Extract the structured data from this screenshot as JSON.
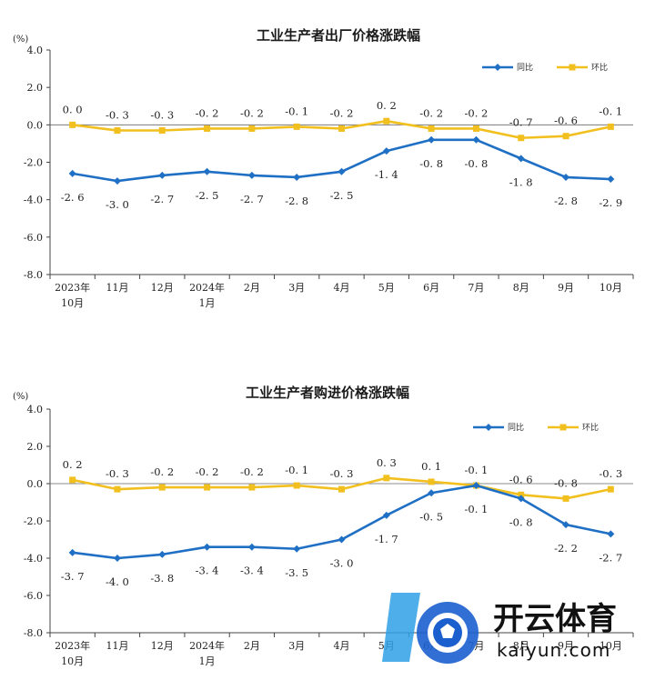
{
  "chart_data": [
    {
      "type": "line",
      "title": "工业生产者出厂价格涨跌幅",
      "unit_label": "(%)",
      "categories": [
        [
          "2023年",
          "10月"
        ],
        [
          "11月"
        ],
        [
          "12月"
        ],
        [
          "2024年",
          "1月"
        ],
        [
          "2月"
        ],
        [
          "3月"
        ],
        [
          "4月"
        ],
        [
          "5月"
        ],
        [
          "6月"
        ],
        [
          "7月"
        ],
        [
          "8月"
        ],
        [
          "9月"
        ],
        [
          "10月"
        ]
      ],
      "ylim": [
        -8.0,
        4.0
      ],
      "yticks": [
        "4.0",
        "2.0",
        "0.0",
        "-2.0",
        "-4.0",
        "-6.0",
        "-8.0"
      ],
      "legend_position": "top-right",
      "series": [
        {
          "name": "同比",
          "color": "#1f6fc4",
          "marker": "diamond",
          "values": [
            -2.6,
            -3.0,
            -2.7,
            -2.5,
            -2.7,
            -2.8,
            -2.5,
            -1.4,
            -0.8,
            -0.8,
            -1.8,
            -2.8,
            -2.9
          ],
          "labels": [
            "-2.6",
            "-3.0",
            "-2.7",
            "-2.5",
            "-2.7",
            "-2.8",
            "-2.5",
            "-1.4",
            "-0.8",
            "-0.8",
            "-1.8",
            "-2.8",
            "-2.9"
          ]
        },
        {
          "name": "环比",
          "color": "#f2c01e",
          "marker": "square",
          "values": [
            0.0,
            -0.3,
            -0.3,
            -0.2,
            -0.2,
            -0.1,
            -0.2,
            0.2,
            -0.2,
            -0.2,
            -0.7,
            -0.6,
            -0.1
          ],
          "labels": [
            "0.0",
            "-0.3",
            "-0.3",
            "-0.2",
            "-0.2",
            "-0.1",
            "-0.2",
            "0.2",
            "-0.2",
            "-0.2",
            "-0.7",
            "-0.6",
            "-0.1"
          ]
        }
      ]
    },
    {
      "type": "line",
      "title": "工业生产者购进价格涨跌幅",
      "unit_label": "(%)",
      "categories": [
        [
          "2023年",
          "10月"
        ],
        [
          "11月"
        ],
        [
          "12月"
        ],
        [
          "2024年",
          "1月"
        ],
        [
          "2月"
        ],
        [
          "3月"
        ],
        [
          "4月"
        ],
        [
          "5月"
        ],
        [
          "6月"
        ],
        [
          "7月"
        ],
        [
          "8月"
        ],
        [
          "9月"
        ],
        [
          "10月"
        ]
      ],
      "ylim": [
        -8.0,
        4.0
      ],
      "yticks": [
        "4.0",
        "2.0",
        "0.0",
        "-2.0",
        "-4.0",
        "-6.0",
        "-8.0"
      ],
      "legend_position": "top-right",
      "series": [
        {
          "name": "同比",
          "color": "#1f6fc4",
          "marker": "diamond",
          "values": [
            -3.7,
            -4.0,
            -3.8,
            -3.4,
            -3.4,
            -3.5,
            -3.0,
            -1.7,
            -0.5,
            -0.1,
            -0.8,
            -2.2,
            -2.7
          ],
          "labels": [
            "-3.7",
            "-4.0",
            "-3.8",
            "-3.4",
            "-3.4",
            "-3.5",
            "-3.0",
            "-1.7",
            "-0.5",
            "-0.1",
            "-0.8",
            "-2.2",
            "-2.7"
          ]
        },
        {
          "name": "环比",
          "color": "#f2c01e",
          "marker": "square",
          "values": [
            0.2,
            -0.3,
            -0.2,
            -0.2,
            -0.2,
            -0.1,
            -0.3,
            0.3,
            0.1,
            -0.1,
            -0.6,
            -0.8,
            -0.3
          ],
          "labels": [
            "0.2",
            "-0.3",
            "-0.2",
            "-0.2",
            "-0.2",
            "-0.1",
            "-0.3",
            "0.3",
            "0.1",
            "-0.1",
            "-0.6",
            "-0.8",
            "-0.3"
          ]
        }
      ]
    }
  ],
  "watermark": {
    "brand_cn": "开云体育",
    "brand_en": "kaiyun.com",
    "logo_icon": "soccer-ball-icon"
  }
}
